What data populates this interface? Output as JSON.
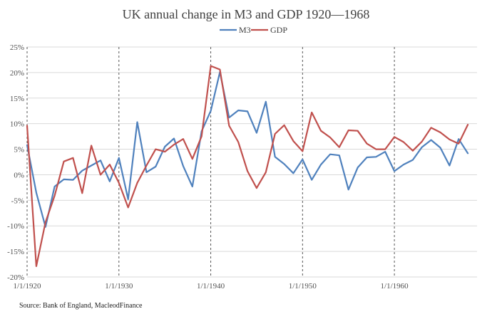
{
  "chart_data": {
    "type": "line",
    "title": "UK annual change in M3 and GDP 1920—1968",
    "source": "Source: Bank of England, MacleodFinance",
    "x": [
      1920,
      1921,
      1922,
      1923,
      1924,
      1925,
      1926,
      1927,
      1928,
      1929,
      1930,
      1931,
      1932,
      1933,
      1934,
      1935,
      1936,
      1937,
      1938,
      1939,
      1940,
      1941,
      1942,
      1943,
      1944,
      1945,
      1946,
      1947,
      1948,
      1949,
      1950,
      1951,
      1952,
      1953,
      1954,
      1955,
      1956,
      1957,
      1958,
      1959,
      1960,
      1961,
      1962,
      1963,
      1964,
      1965,
      1966,
      1967,
      1968
    ],
    "x_tick_values": [
      1920,
      1930,
      1940,
      1950,
      1960
    ],
    "x_tick_labels": [
      "1/1/1920",
      "1/1/1930",
      "1/1/1940",
      "1/1/1950",
      "1/1/1960"
    ],
    "vertical_markers": [
      1920,
      1930,
      1940,
      1950,
      1960
    ],
    "xlim": [
      1920,
      1969
    ],
    "y_tick_values": [
      -20,
      -15,
      -10,
      -5,
      0,
      5,
      10,
      15,
      20,
      25
    ],
    "y_tick_labels": [
      "-20%",
      "-15%",
      "-10%",
      "-5%",
      "0%",
      "5%",
      "10%",
      "15%",
      "20%",
      "25%"
    ],
    "ylim": [
      -20,
      25
    ],
    "grid": true,
    "legend_position": "top",
    "series": [
      {
        "name": "M3",
        "color": "#4f81bd",
        "values": [
          5.8,
          -3.5,
          -10.2,
          -2.3,
          -0.9,
          -1.0,
          0.8,
          1.8,
          2.8,
          -1.3,
          3.3,
          -4.8,
          10.3,
          0.5,
          1.6,
          5.5,
          7.1,
          1.7,
          -2.3,
          8.5,
          12.5,
          20.1,
          11.2,
          12.6,
          12.4,
          8.2,
          14.3,
          3.5,
          2.1,
          0.3,
          3.0,
          -1.0,
          2.0,
          4.0,
          3.8,
          -2.9,
          1.4,
          3.4,
          3.5,
          4.5,
          0.7,
          2.0,
          2.9,
          5.4,
          6.8,
          5.3,
          1.8,
          7.0,
          4.2
        ]
      },
      {
        "name": "GDP",
        "color": "#c0504d",
        "values": [
          9.6,
          -17.9,
          -9.3,
          -4.1,
          2.6,
          3.3,
          -3.6,
          5.7,
          0.0,
          2.0,
          -1.6,
          -6.4,
          -1.6,
          1.8,
          5.0,
          4.5,
          5.9,
          7.0,
          3.1,
          7.5,
          21.3,
          20.6,
          9.6,
          6.4,
          0.7,
          -2.6,
          0.5,
          8.0,
          9.7,
          6.6,
          4.6,
          12.2,
          8.6,
          7.3,
          5.4,
          8.7,
          8.6,
          6.1,
          5.0,
          5.0,
          7.4,
          6.4,
          4.7,
          6.5,
          9.2,
          8.3,
          6.9,
          6.1,
          9.8
        ]
      }
    ]
  }
}
